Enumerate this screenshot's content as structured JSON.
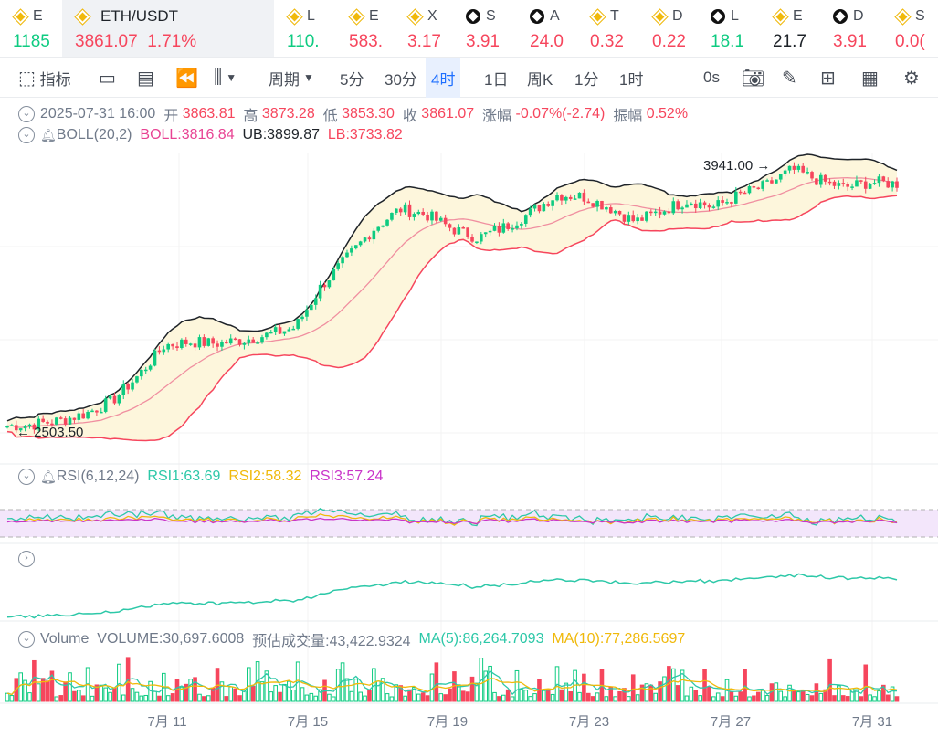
{
  "tickers": [
    {
      "icon": "bnb",
      "name": "E",
      "value": "1185",
      "color": "up"
    },
    {
      "icon": "bnb",
      "name": "L",
      "value": "110.",
      "color": "up"
    },
    {
      "icon": "bnb",
      "name": "E",
      "value": "583.",
      "color": "dn"
    },
    {
      "icon": "bnb",
      "name": "X",
      "value": "3.17",
      "color": "dn"
    },
    {
      "icon": "vet",
      "name": "S",
      "value": "3.91",
      "color": "dn"
    },
    {
      "icon": "vet",
      "name": "A",
      "value": "24.0",
      "color": "dn"
    },
    {
      "icon": "bnb",
      "name": "T",
      "value": "0.32",
      "color": "dn"
    },
    {
      "icon": "bnb",
      "name": "D",
      "value": "0.22",
      "color": "dn"
    },
    {
      "icon": "vet",
      "name": "L",
      "value": "18.1",
      "color": "up"
    },
    {
      "icon": "bnb",
      "name": "E",
      "value": "21.7",
      "color": "bk"
    },
    {
      "icon": "vet",
      "name": "D",
      "value": "3.91",
      "color": "dn"
    },
    {
      "icon": "bnb",
      "name": "S",
      "value": "0.0(",
      "color": "dn"
    }
  ],
  "main_ticker": {
    "pair": "ETH/USDT",
    "price": "3861.07",
    "change": "1.71%"
  },
  "toolbar": {
    "indicators": "指标",
    "period": "周期",
    "tabs": [
      "5分",
      "30分",
      "4时",
      "1日",
      "周K",
      "1分",
      "1时"
    ],
    "active_tab": "4时",
    "seconds": "0s"
  },
  "ohlc": {
    "date": "2025-07-31 16:00",
    "open_label": "开",
    "open": "3863.81",
    "high_label": "高",
    "high": "3873.28",
    "low_label": "低",
    "low": "3853.30",
    "close_label": "收",
    "close": "3861.07",
    "chg_label": "涨幅",
    "chg": "-0.07%(-2.74)",
    "amp_label": "振幅",
    "amp": "0.52%"
  },
  "boll": {
    "name": "BOLL(20,2)",
    "mid": "BOLL:3816.84",
    "ub": "UB:3899.87",
    "lb": "LB:3733.82"
  },
  "rsi": {
    "name": "RSI(6,12,24)",
    "r1": "RSI1:63.69",
    "r2": "RSI2:58.32",
    "r3": "RSI3:57.24"
  },
  "volume": {
    "name": "Volume",
    "vol": "VOLUME:30,697.6008",
    "est": "预估成交量:43,422.9324",
    "ma5": "MA(5):86,264.7093",
    "ma10": "MA(10):77,286.5697"
  },
  "chart_data": {
    "type": "candlestick",
    "price_marks": {
      "max": "3941.00",
      "min": "2503.50"
    },
    "x_ticks": [
      "7月 11",
      "7月 15",
      "7月 19",
      "7月 23",
      "7月 27",
      "7月 31"
    ],
    "close_path": [
      2510,
      2520,
      2540,
      2580,
      2650,
      2790,
      2960,
      2980,
      2970,
      2990,
      3020,
      3060,
      3290,
      3450,
      3610,
      3720,
      3690,
      3610,
      3560,
      3620,
      3700,
      3800,
      3790,
      3730,
      3650,
      3710,
      3770,
      3730,
      3800,
      3850,
      3940,
      3880,
      3840,
      3870,
      3861
    ],
    "colors": {
      "up": "#0ecb81",
      "down": "#f6465d",
      "ub": "#1e2329",
      "mid": "#f6465d",
      "band": "#fdf6dc",
      "rsi1": "#2dc8a8",
      "rsi2": "#f0b90b",
      "rsi3": "#c935c9"
    }
  }
}
